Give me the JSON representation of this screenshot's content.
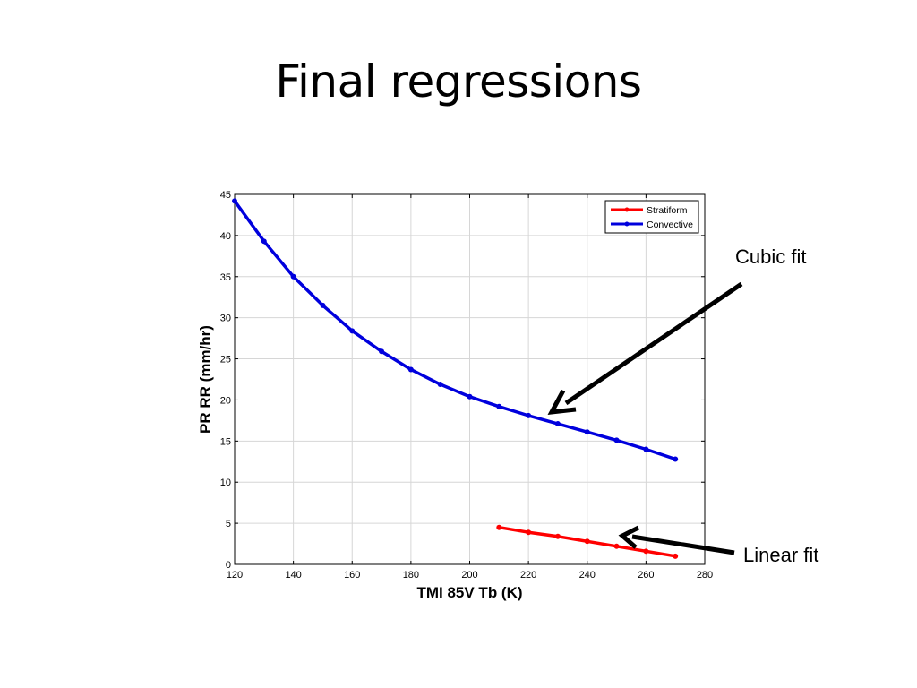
{
  "slide": {
    "title": "Final regressions"
  },
  "annotations": {
    "cubic": "Cubic fit",
    "linear": "Linear fit"
  },
  "chart_data": {
    "type": "line",
    "xlabel": "TMI 85V Tb (K)",
    "ylabel": "PR RR (mm/hr)",
    "xlim": [
      120,
      280
    ],
    "ylim": [
      0,
      45
    ],
    "xticks": [
      120,
      140,
      160,
      180,
      200,
      220,
      240,
      260,
      280
    ],
    "yticks": [
      0,
      5,
      10,
      15,
      20,
      25,
      30,
      35,
      40,
      45
    ],
    "grid": true,
    "legend_position": "top-right",
    "series": [
      {
        "name": "Stratiform",
        "color": "#ff0000",
        "x": [
          210,
          220,
          230,
          240,
          250,
          260,
          270
        ],
        "y": [
          4.5,
          3.9,
          3.4,
          2.8,
          2.2,
          1.6,
          1.0
        ]
      },
      {
        "name": "Convective",
        "color": "#0000dd",
        "x": [
          120,
          130,
          140,
          150,
          160,
          170,
          180,
          190,
          200,
          210,
          220,
          230,
          240,
          250,
          260,
          270
        ],
        "y": [
          44.2,
          39.3,
          35.0,
          31.5,
          28.4,
          25.9,
          23.7,
          21.9,
          20.4,
          19.2,
          18.1,
          17.1,
          16.1,
          15.1,
          14.0,
          12.8
        ]
      }
    ]
  }
}
